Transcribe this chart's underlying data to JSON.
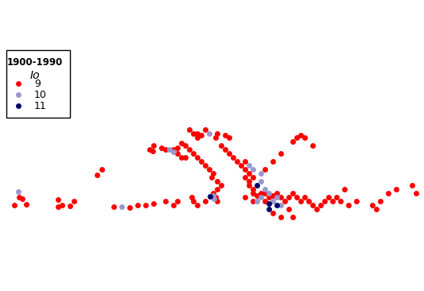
{
  "title": "1900-1990",
  "legend_title": "Io",
  "lon_min": -11,
  "lon_max": 42,
  "lat_min": 32,
  "lat_max": 57,
  "background_color": "#ffffff",
  "border_color": "#aaaaaa",
  "legend_border_color": "#000000",
  "color_9": "#ff0000",
  "color_10": "#9999cc",
  "color_11": "#000066",
  "marker_size": 5,
  "earthquakes": [
    {
      "lon": -9.0,
      "lat": 38.7,
      "io": 10
    },
    {
      "lon": -8.5,
      "lat": 37.8,
      "io": 9
    },
    {
      "lon": -8.0,
      "lat": 37.1,
      "io": 9
    },
    {
      "lon": -9.5,
      "lat": 37.0,
      "io": 9
    },
    {
      "lon": -8.9,
      "lat": 38.0,
      "io": 9
    },
    {
      "lon": 1.5,
      "lat": 41.5,
      "io": 9
    },
    {
      "lon": 0.9,
      "lat": 40.8,
      "io": 9
    },
    {
      "lon": -4.0,
      "lat": 37.7,
      "io": 9
    },
    {
      "lon": -2.0,
      "lat": 37.5,
      "io": 9
    },
    {
      "lon": -3.5,
      "lat": 37.0,
      "io": 9
    },
    {
      "lon": -4.0,
      "lat": 36.8,
      "io": 9
    },
    {
      "lon": -2.5,
      "lat": 36.9,
      "io": 9
    },
    {
      "lon": 3.0,
      "lat": 36.8,
      "io": 9
    },
    {
      "lon": 4.0,
      "lat": 36.8,
      "io": 10
    },
    {
      "lon": 5.0,
      "lat": 36.7,
      "io": 9
    },
    {
      "lon": 6.0,
      "lat": 37.0,
      "io": 9
    },
    {
      "lon": 7.0,
      "lat": 37.0,
      "io": 9
    },
    {
      "lon": 8.0,
      "lat": 37.2,
      "io": 9
    },
    {
      "lon": 9.5,
      "lat": 37.5,
      "io": 9
    },
    {
      "lon": 10.5,
      "lat": 37.0,
      "io": 9
    },
    {
      "lon": 11.0,
      "lat": 37.5,
      "io": 9
    },
    {
      "lon": 7.5,
      "lat": 44.0,
      "io": 9
    },
    {
      "lon": 7.9,
      "lat": 43.8,
      "io": 9
    },
    {
      "lon": 8.0,
      "lat": 44.5,
      "io": 9
    },
    {
      "lon": 9.0,
      "lat": 44.2,
      "io": 9
    },
    {
      "lon": 9.5,
      "lat": 44.0,
      "io": 9
    },
    {
      "lon": 10.5,
      "lat": 44.0,
      "io": 9
    },
    {
      "lon": 10.0,
      "lat": 44.0,
      "io": 10
    },
    {
      "lon": 10.5,
      "lat": 43.7,
      "io": 10
    },
    {
      "lon": 11.0,
      "lat": 44.2,
      "io": 9
    },
    {
      "lon": 11.5,
      "lat": 44.8,
      "io": 9
    },
    {
      "lon": 12.0,
      "lat": 44.5,
      "io": 9
    },
    {
      "lon": 12.5,
      "lat": 44.0,
      "io": 9
    },
    {
      "lon": 13.0,
      "lat": 43.5,
      "io": 9
    },
    {
      "lon": 13.5,
      "lat": 43.0,
      "io": 9
    },
    {
      "lon": 14.0,
      "lat": 42.5,
      "io": 9
    },
    {
      "lon": 14.5,
      "lat": 42.0,
      "io": 9
    },
    {
      "lon": 15.0,
      "lat": 41.5,
      "io": 9
    },
    {
      "lon": 15.5,
      "lat": 41.0,
      "io": 9
    },
    {
      "lon": 15.3,
      "lat": 40.5,
      "io": 9
    },
    {
      "lon": 16.0,
      "lat": 40.0,
      "io": 9
    },
    {
      "lon": 16.5,
      "lat": 39.5,
      "io": 9
    },
    {
      "lon": 16.0,
      "lat": 39.0,
      "io": 9
    },
    {
      "lon": 15.5,
      "lat": 38.5,
      "io": 9
    },
    {
      "lon": 15.8,
      "lat": 38.0,
      "io": 9
    },
    {
      "lon": 16.0,
      "lat": 37.5,
      "io": 9
    },
    {
      "lon": 15.5,
      "lat": 38.2,
      "io": 10
    },
    {
      "lon": 15.6,
      "lat": 37.8,
      "io": 10
    },
    {
      "lon": 15.1,
      "lat": 38.1,
      "io": 11
    },
    {
      "lon": 14.5,
      "lat": 37.5,
      "io": 9
    },
    {
      "lon": 13.5,
      "lat": 37.0,
      "io": 9
    },
    {
      "lon": 13.0,
      "lat": 37.5,
      "io": 9
    },
    {
      "lon": 12.8,
      "lat": 38.0,
      "io": 9
    },
    {
      "lon": 11.0,
      "lat": 43.5,
      "io": 9
    },
    {
      "lon": 11.5,
      "lat": 43.0,
      "io": 9
    },
    {
      "lon": 12.0,
      "lat": 43.0,
      "io": 9
    },
    {
      "lon": 12.5,
      "lat": 46.5,
      "io": 9
    },
    {
      "lon": 13.0,
      "lat": 46.0,
      "io": 9
    },
    {
      "lon": 13.5,
      "lat": 46.0,
      "io": 9
    },
    {
      "lon": 14.5,
      "lat": 46.5,
      "io": 9
    },
    {
      "lon": 15.0,
      "lat": 46.0,
      "io": 10
    },
    {
      "lon": 13.5,
      "lat": 45.5,
      "io": 9
    },
    {
      "lon": 14.0,
      "lat": 45.8,
      "io": 9
    },
    {
      "lon": 15.8,
      "lat": 45.5,
      "io": 9
    },
    {
      "lon": 16.0,
      "lat": 46.0,
      "io": 9
    },
    {
      "lon": 17.0,
      "lat": 45.8,
      "io": 9
    },
    {
      "lon": 17.5,
      "lat": 45.5,
      "io": 9
    },
    {
      "lon": 16.5,
      "lat": 44.5,
      "io": 9
    },
    {
      "lon": 17.0,
      "lat": 44.0,
      "io": 9
    },
    {
      "lon": 17.5,
      "lat": 43.5,
      "io": 9
    },
    {
      "lon": 18.0,
      "lat": 43.0,
      "io": 9
    },
    {
      "lon": 18.5,
      "lat": 42.5,
      "io": 9
    },
    {
      "lon": 19.0,
      "lat": 42.0,
      "io": 9
    },
    {
      "lon": 19.5,
      "lat": 41.5,
      "io": 9
    },
    {
      "lon": 20.0,
      "lat": 41.0,
      "io": 9
    },
    {
      "lon": 20.5,
      "lat": 40.5,
      "io": 9
    },
    {
      "lon": 20.0,
      "lat": 40.0,
      "io": 9
    },
    {
      "lon": 19.5,
      "lat": 40.5,
      "io": 9
    },
    {
      "lon": 20.0,
      "lat": 39.5,
      "io": 9
    },
    {
      "lon": 20.5,
      "lat": 39.0,
      "io": 9
    },
    {
      "lon": 20.5,
      "lat": 38.5,
      "io": 9
    },
    {
      "lon": 21.0,
      "lat": 38.2,
      "io": 9
    },
    {
      "lon": 22.0,
      "lat": 37.5,
      "io": 9
    },
    {
      "lon": 22.0,
      "lat": 38.5,
      "io": 9
    },
    {
      "lon": 21.5,
      "lat": 38.5,
      "io": 9
    },
    {
      "lon": 22.5,
      "lat": 38.0,
      "io": 9
    },
    {
      "lon": 23.0,
      "lat": 38.2,
      "io": 9
    },
    {
      "lon": 23.5,
      "lat": 38.5,
      "io": 9
    },
    {
      "lon": 24.0,
      "lat": 38.0,
      "io": 9
    },
    {
      "lon": 24.5,
      "lat": 37.5,
      "io": 9
    },
    {
      "lon": 25.0,
      "lat": 38.0,
      "io": 9
    },
    {
      "lon": 25.5,
      "lat": 38.5,
      "io": 9
    },
    {
      "lon": 26.0,
      "lat": 38.0,
      "io": 9
    },
    {
      "lon": 26.5,
      "lat": 37.5,
      "io": 9
    },
    {
      "lon": 27.0,
      "lat": 38.0,
      "io": 9
    },
    {
      "lon": 27.5,
      "lat": 37.5,
      "io": 9
    },
    {
      "lon": 28.0,
      "lat": 37.0,
      "io": 9
    },
    {
      "lon": 28.5,
      "lat": 36.5,
      "io": 9
    },
    {
      "lon": 29.0,
      "lat": 37.0,
      "io": 9
    },
    {
      "lon": 29.5,
      "lat": 37.5,
      "io": 9
    },
    {
      "lon": 30.0,
      "lat": 38.0,
      "io": 9
    },
    {
      "lon": 30.5,
      "lat": 37.5,
      "io": 9
    },
    {
      "lon": 31.0,
      "lat": 38.0,
      "io": 9
    },
    {
      "lon": 32.0,
      "lat": 39.0,
      "io": 9
    },
    {
      "lon": 36.5,
      "lat": 37.5,
      "io": 9
    },
    {
      "lon": 20.5,
      "lat": 41.5,
      "io": 10
    },
    {
      "lon": 20.0,
      "lat": 42.0,
      "io": 10
    },
    {
      "lon": 19.5,
      "lat": 42.5,
      "io": 9
    },
    {
      "lon": 21.5,
      "lat": 41.0,
      "io": 10
    },
    {
      "lon": 22.0,
      "lat": 41.5,
      "io": 9
    },
    {
      "lon": 23.0,
      "lat": 42.5,
      "io": 9
    },
    {
      "lon": 24.0,
      "lat": 43.5,
      "io": 9
    },
    {
      "lon": 25.5,
      "lat": 45.0,
      "io": 9
    },
    {
      "lon": 26.0,
      "lat": 45.5,
      "io": 9
    },
    {
      "lon": 26.5,
      "lat": 45.8,
      "io": 9
    },
    {
      "lon": 27.0,
      "lat": 45.5,
      "io": 9
    },
    {
      "lon": 28.0,
      "lat": 44.5,
      "io": 9
    },
    {
      "lon": 21.0,
      "lat": 39.5,
      "io": 11
    },
    {
      "lon": 21.5,
      "lat": 40.0,
      "io": 10
    },
    {
      "lon": 22.0,
      "lat": 39.0,
      "io": 10
    },
    {
      "lon": 22.5,
      "lat": 38.5,
      "io": 10
    },
    {
      "lon": 23.5,
      "lat": 38.0,
      "io": 10
    },
    {
      "lon": 21.5,
      "lat": 38.0,
      "io": 10
    },
    {
      "lon": 23.0,
      "lat": 37.5,
      "io": 10
    },
    {
      "lon": 24.0,
      "lat": 37.0,
      "io": 10
    },
    {
      "lon": 22.5,
      "lat": 36.5,
      "io": 11
    },
    {
      "lon": 25.5,
      "lat": 35.5,
      "io": 9
    },
    {
      "lon": 25.0,
      "lat": 36.5,
      "io": 9
    },
    {
      "lon": 24.0,
      "lat": 35.5,
      "io": 9
    },
    {
      "lon": 23.0,
      "lat": 36.0,
      "io": 9
    },
    {
      "lon": 20.5,
      "lat": 37.5,
      "io": 9
    },
    {
      "lon": 21.0,
      "lat": 37.5,
      "io": 10
    },
    {
      "lon": 19.5,
      "lat": 38.0,
      "io": 9
    },
    {
      "lon": 22.5,
      "lat": 37.2,
      "io": 11
    },
    {
      "lon": 23.5,
      "lat": 37.0,
      "io": 11
    },
    {
      "lon": 41.0,
      "lat": 38.5,
      "io": 9
    },
    {
      "lon": 40.5,
      "lat": 39.5,
      "io": 9
    },
    {
      "lon": 38.5,
      "lat": 39.0,
      "io": 9
    },
    {
      "lon": 37.5,
      "lat": 38.5,
      "io": 9
    },
    {
      "lon": 36.0,
      "lat": 36.5,
      "io": 9
    },
    {
      "lon": 35.5,
      "lat": 37.0,
      "io": 9
    },
    {
      "lon": 33.5,
      "lat": 37.5,
      "io": 9
    },
    {
      "lon": 32.5,
      "lat": 37.0,
      "io": 9
    },
    {
      "lon": 31.5,
      "lat": 37.5,
      "io": 9
    }
  ]
}
